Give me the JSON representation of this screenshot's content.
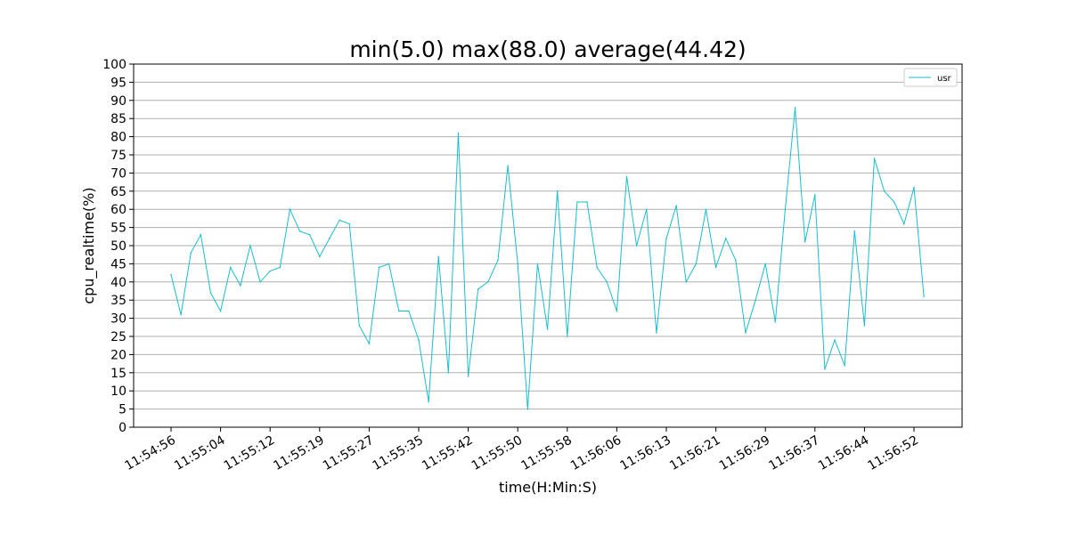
{
  "chart_data": {
    "type": "line",
    "title": "min(5.0) max(88.0) average(44.42)",
    "xlabel": "time(H:Min:S)",
    "ylabel": "cpu_realtime(%)",
    "ylim": [
      0,
      100
    ],
    "yticks": [
      0,
      5,
      10,
      15,
      20,
      25,
      30,
      35,
      40,
      45,
      50,
      55,
      60,
      65,
      70,
      75,
      80,
      85,
      90,
      95,
      100
    ],
    "x_tick_labels": [
      "11:54:56",
      "11:55:04",
      "11:55:12",
      "11:55:19",
      "11:55:27",
      "11:55:35",
      "11:55:42",
      "11:55:50",
      "11:55:58",
      "11:56:06",
      "11:56:13",
      "11:56:21",
      "11:56:29",
      "11:56:37",
      "11:56:44",
      "11:56:52"
    ],
    "grid": "horizontal",
    "legend_position": "top-right",
    "series": [
      {
        "name": "usr",
        "color": "#17becf",
        "values": [
          42,
          31,
          48,
          53,
          37,
          32,
          44,
          39,
          50,
          40,
          43,
          44,
          60,
          54,
          53,
          47,
          52,
          57,
          56,
          28,
          23,
          44,
          45,
          32,
          32,
          24,
          7,
          47,
          15,
          81,
          14,
          38,
          40,
          46,
          72,
          45,
          5,
          45,
          27,
          65,
          25,
          62,
          62,
          44,
          40,
          32,
          69,
          50,
          60,
          26,
          52,
          61,
          40,
          45,
          60,
          44,
          52,
          46,
          26,
          35,
          45,
          29,
          60,
          88,
          51,
          64,
          16,
          24,
          17,
          54,
          28,
          74,
          65,
          62,
          56,
          66,
          36
        ]
      }
    ]
  }
}
